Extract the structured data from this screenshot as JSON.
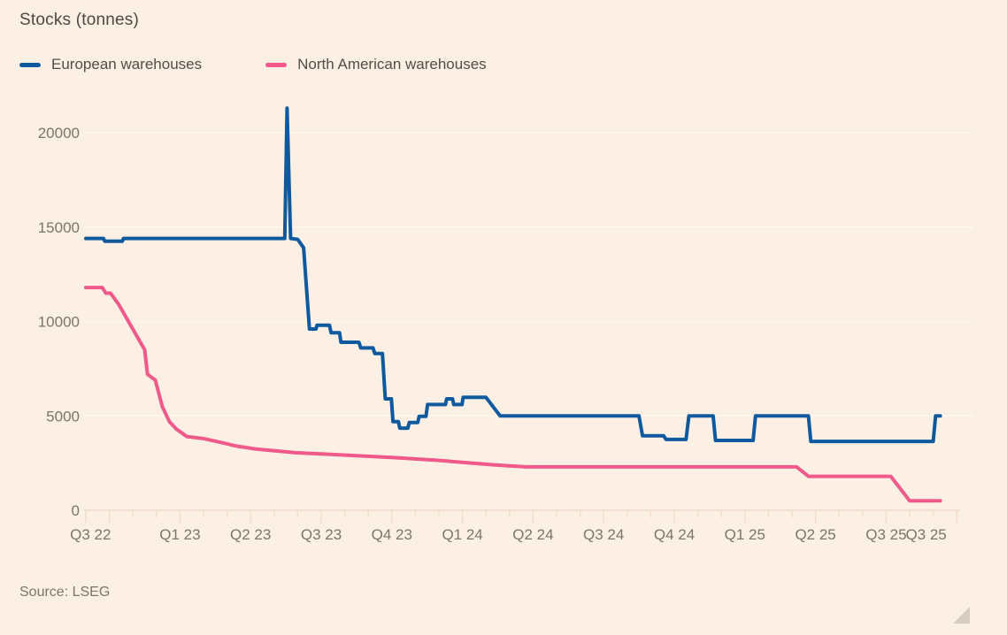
{
  "title": "Stocks (tonnes)",
  "source": "Source: LSEG",
  "legend": {
    "items": [
      {
        "label": "European warehouses",
        "color": "#0f5a9e"
      },
      {
        "label": "North American warehouses",
        "color": "#ef5a8a"
      }
    ]
  },
  "colors": {
    "background": "#fcefe3",
    "title_text": "#4e4844",
    "axis_text": "#7d746c",
    "gridline": "#fff8f0",
    "axis_line": "#f2dbca",
    "blue": "#0f5a9e",
    "pink": "#ef5a8a"
  },
  "chart_data": {
    "type": "line",
    "title": "Stocks (tonnes)",
    "xlabel": "",
    "ylabel": "Stocks (tonnes)",
    "x_unit": "months since 2022-09",
    "x_range": [
      0,
      37.5
    ],
    "ylim": [
      0,
      22000
    ],
    "grid": "horizontal-faint",
    "legend_position": "top-left",
    "y_ticks": [
      0,
      5000,
      10000,
      15000,
      20000
    ],
    "x_minor_tick_every_months": 1,
    "x_ticks": [
      {
        "label": "Q3 22",
        "m": 0.2
      },
      {
        "label": "Q1 23",
        "m": 4
      },
      {
        "label": "Q2 23",
        "m": 7
      },
      {
        "label": "Q3 23",
        "m": 10
      },
      {
        "label": "Q4 23",
        "m": 13
      },
      {
        "label": "Q1 24",
        "m": 16
      },
      {
        "label": "Q2 24",
        "m": 19
      },
      {
        "label": "Q3 24",
        "m": 22
      },
      {
        "label": "Q4 24",
        "m": 25
      },
      {
        "label": "Q1 25",
        "m": 28
      },
      {
        "label": "Q2 25",
        "m": 31
      },
      {
        "label": "Q3 25",
        "m": 34
      },
      {
        "label": "Q3 25",
        "m": 35.7
      }
    ],
    "series": [
      {
        "name": "European warehouses",
        "color": "#0f5a9e",
        "points": [
          [
            0,
            14400
          ],
          [
            0.75,
            14400
          ],
          [
            0.8,
            14250
          ],
          [
            1.55,
            14250
          ],
          [
            1.6,
            14400
          ],
          [
            8.45,
            14400
          ],
          [
            8.55,
            21300
          ],
          [
            8.7,
            14400
          ],
          [
            9.0,
            14350
          ],
          [
            9.25,
            13900
          ],
          [
            9.5,
            9600
          ],
          [
            9.78,
            9600
          ],
          [
            9.82,
            9800
          ],
          [
            10.35,
            9800
          ],
          [
            10.42,
            9400
          ],
          [
            10.78,
            9400
          ],
          [
            10.84,
            8900
          ],
          [
            11.6,
            8900
          ],
          [
            11.68,
            8600
          ],
          [
            12.2,
            8600
          ],
          [
            12.28,
            8300
          ],
          [
            12.6,
            8300
          ],
          [
            12.72,
            5900
          ],
          [
            12.98,
            5900
          ],
          [
            13.05,
            4700
          ],
          [
            13.28,
            4700
          ],
          [
            13.34,
            4350
          ],
          [
            13.68,
            4350
          ],
          [
            13.74,
            4650
          ],
          [
            14.1,
            4650
          ],
          [
            14.16,
            4980
          ],
          [
            14.45,
            4980
          ],
          [
            14.52,
            5600
          ],
          [
            15.28,
            5600
          ],
          [
            15.33,
            5900
          ],
          [
            15.58,
            5900
          ],
          [
            15.63,
            5600
          ],
          [
            15.98,
            5600
          ],
          [
            16.03,
            5980
          ],
          [
            17.0,
            5980
          ],
          [
            17.6,
            5000
          ],
          [
            23.5,
            5000
          ],
          [
            23.65,
            3950
          ],
          [
            24.55,
            3950
          ],
          [
            24.65,
            3750
          ],
          [
            25.5,
            3750
          ],
          [
            25.62,
            5000
          ],
          [
            26.65,
            5000
          ],
          [
            26.75,
            3700
          ],
          [
            28.35,
            3700
          ],
          [
            28.45,
            5000
          ],
          [
            30.7,
            5000
          ],
          [
            30.8,
            3650
          ],
          [
            36.0,
            3650
          ],
          [
            36.1,
            5000
          ],
          [
            36.3,
            5000
          ]
        ]
      },
      {
        "name": "North American warehouses",
        "color": "#ef5a8a",
        "points": [
          [
            0,
            11800
          ],
          [
            0.7,
            11800
          ],
          [
            0.85,
            11500
          ],
          [
            1.05,
            11500
          ],
          [
            1.4,
            10900
          ],
          [
            2.5,
            8500
          ],
          [
            2.62,
            7200
          ],
          [
            2.95,
            6900
          ],
          [
            3.25,
            5500
          ],
          [
            3.55,
            4700
          ],
          [
            3.85,
            4300
          ],
          [
            4.3,
            3900
          ],
          [
            5.0,
            3800
          ],
          [
            5.9,
            3550
          ],
          [
            6.4,
            3400
          ],
          [
            7.2,
            3250
          ],
          [
            8.9,
            3050
          ],
          [
            10.6,
            2950
          ],
          [
            11.4,
            2900
          ],
          [
            13.0,
            2800
          ],
          [
            14.9,
            2650
          ],
          [
            17.4,
            2400
          ],
          [
            18.7,
            2300
          ],
          [
            30.2,
            2300
          ],
          [
            30.7,
            1800
          ],
          [
            34.2,
            1800
          ],
          [
            35.0,
            500
          ],
          [
            36.3,
            500
          ]
        ]
      }
    ]
  }
}
